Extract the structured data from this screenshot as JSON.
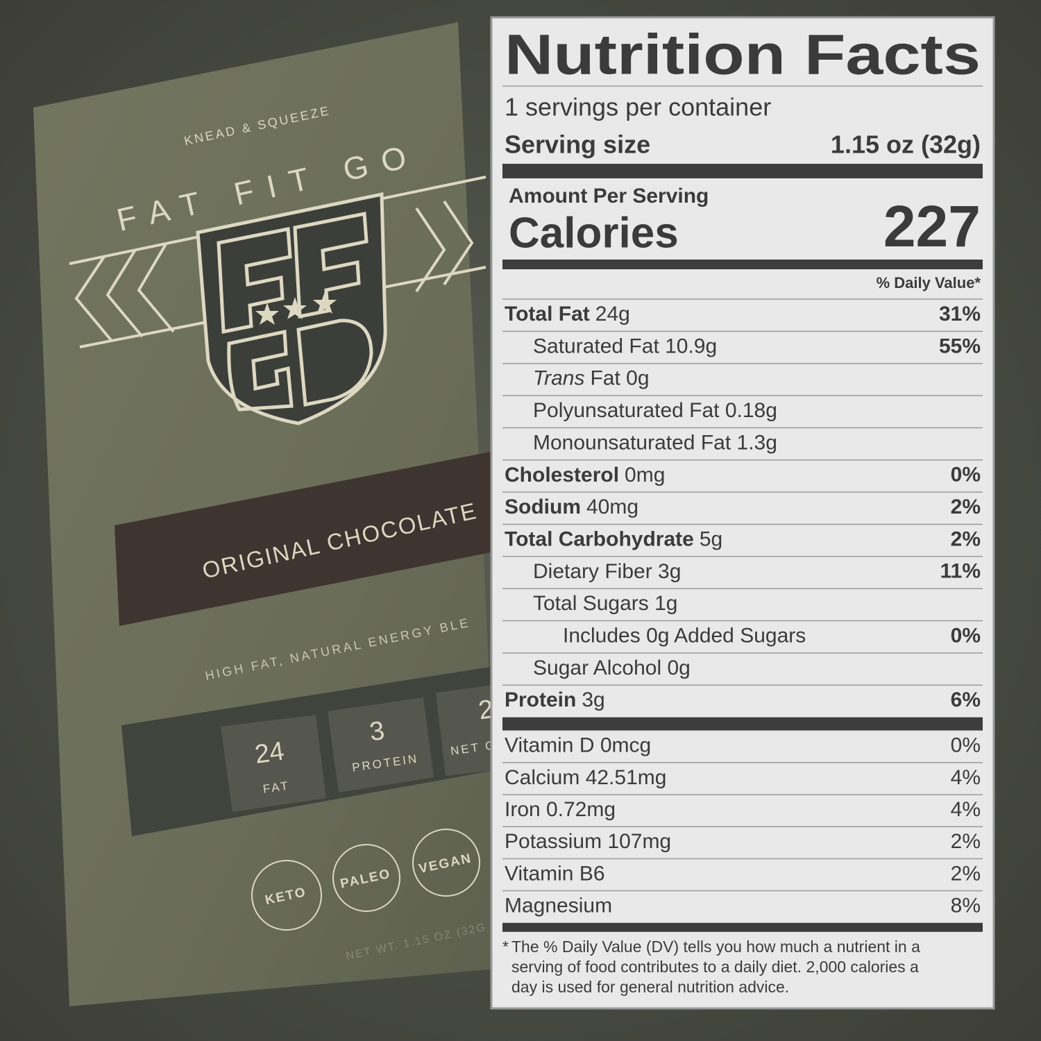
{
  "package": {
    "brand_tagline": "KNEAD & SQUEEZE",
    "brand": "FAT FIT GO",
    "flavor": "ORIGINAL CHOCOLATE",
    "description": "HIGH FAT, NATURAL ENERGY BLE",
    "macros": [
      {
        "value": "24",
        "label": "FAT"
      },
      {
        "value": "3",
        "label": "PROTEIN"
      },
      {
        "value": "2",
        "label": "NET C"
      }
    ],
    "badges": [
      "KETO",
      "PALEO",
      "VEGAN"
    ],
    "net_weight": "NET WT. 1.15 OZ (32G"
  },
  "label": {
    "title": "Nutrition Facts",
    "servings": "1 servings per container",
    "serving_size_label": "Serving size",
    "serving_size": "1.15 oz (32g)",
    "amount_per_serving": "Amount Per Serving",
    "calories_label": "Calories",
    "calories": "227",
    "daily_value_header": "% Daily Value*",
    "nutrients": [
      {
        "name": "Total Fat",
        "amount": "24g",
        "dv": "31%",
        "level": 0
      },
      {
        "name": "Saturated Fat 10.9g",
        "dv": "55%",
        "level": 1
      },
      {
        "italic": "Trans",
        "name": "Fat 0g",
        "level": 1
      },
      {
        "name": "Polyunsaturated Fat 0.18g",
        "level": 1
      },
      {
        "name": "Monounsaturated Fat 1.3g",
        "level": 1
      },
      {
        "name": "Cholesterol",
        "amount": "0mg",
        "dv": "0%",
        "level": 0
      },
      {
        "name": "Sodium",
        "amount": "40mg",
        "dv": "2%",
        "level": 0
      },
      {
        "name": "Total Carbohydrate",
        "amount": "5g",
        "dv": "2%",
        "level": 0
      },
      {
        "name": "Dietary Fiber 3g",
        "dv": "11%",
        "level": 1
      },
      {
        "name": "Total Sugars 1g",
        "level": 1
      },
      {
        "name": "Includes 0g Added Sugars",
        "dv": "0%",
        "level": 2
      },
      {
        "name": "Sugar Alcohol 0g",
        "level": 1
      },
      {
        "name": "Protein",
        "amount": "3g",
        "dv": "6%",
        "level": 0
      }
    ],
    "vitamins": [
      {
        "name": "Vitamin D 0mcg",
        "dv": "0%"
      },
      {
        "name": "Calcium 42.51mg",
        "dv": "4%"
      },
      {
        "name": "Iron 0.72mg",
        "dv": "4%"
      },
      {
        "name": "Potassium 107mg",
        "dv": "2%"
      },
      {
        "name": "Vitamin B6",
        "dv": "2%"
      },
      {
        "name": "Magnesium",
        "dv": "8%"
      }
    ],
    "footnote_mark": "*",
    "footnote": [
      "The % Daily Value (DV) tells you how much a nutrient in a",
      "serving of food contributes to a daily diet. 2,000 calories a",
      "day is used for general nutrition advice."
    ]
  }
}
